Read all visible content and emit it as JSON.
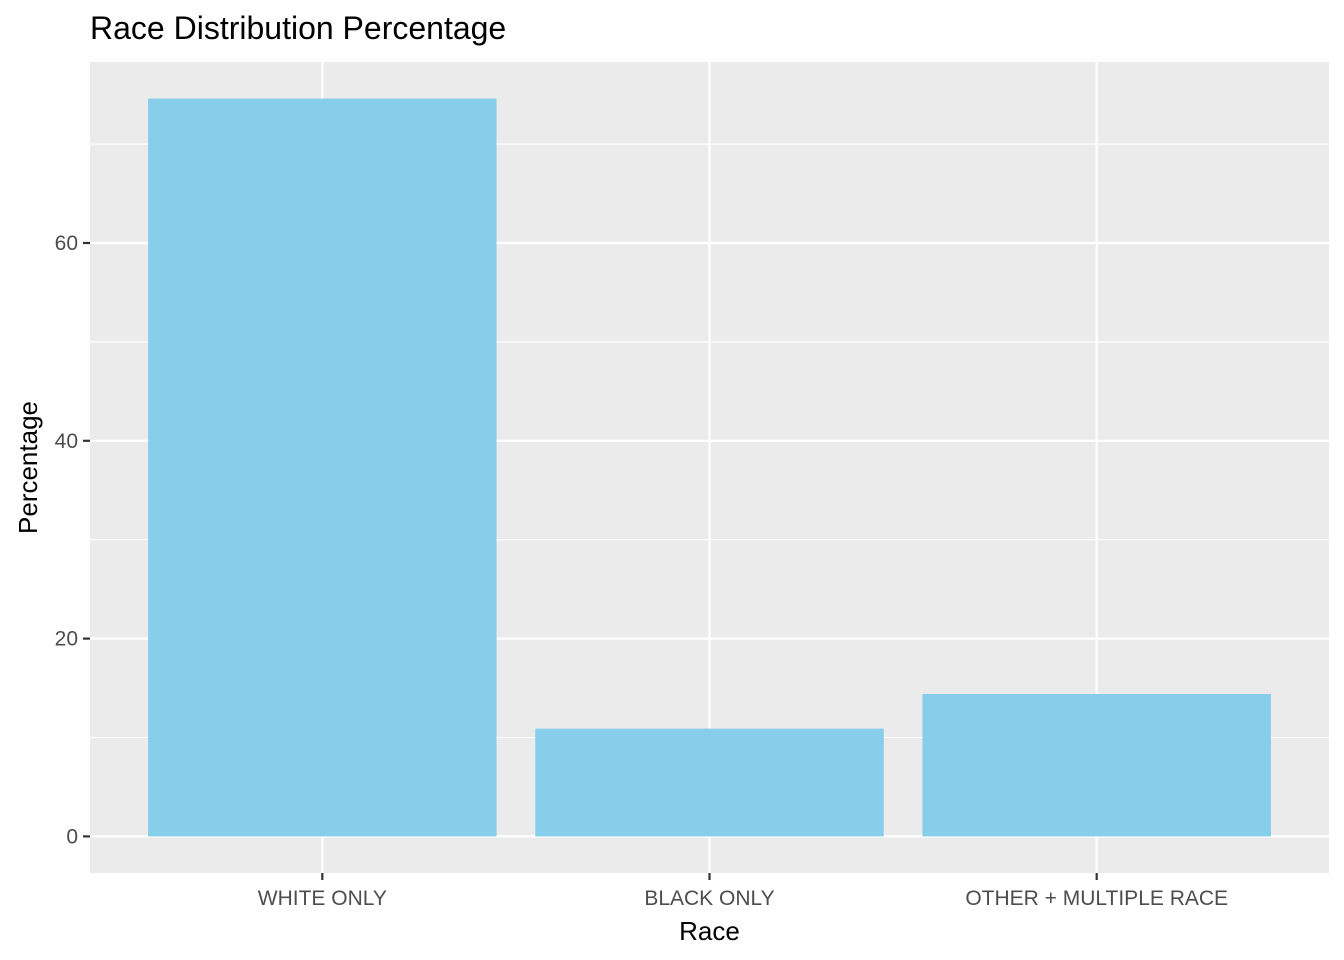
{
  "chart_data": {
    "type": "bar",
    "title": "Race Distribution Percentage",
    "xlabel": "Race",
    "ylabel": "Percentage",
    "categories": [
      "WHITE ONLY",
      "BLACK ONLY",
      "OTHER + MULTIPLE RACE"
    ],
    "values": [
      74.6,
      10.9,
      14.4
    ],
    "ylim": [
      -3.7,
      78.3
    ],
    "yticks": [
      0,
      20,
      40,
      60
    ],
    "grid": true,
    "legend": "none",
    "colors": {
      "bar": "#87ceeb",
      "panel": "#ebebeb",
      "grid": "#ffffff"
    }
  }
}
